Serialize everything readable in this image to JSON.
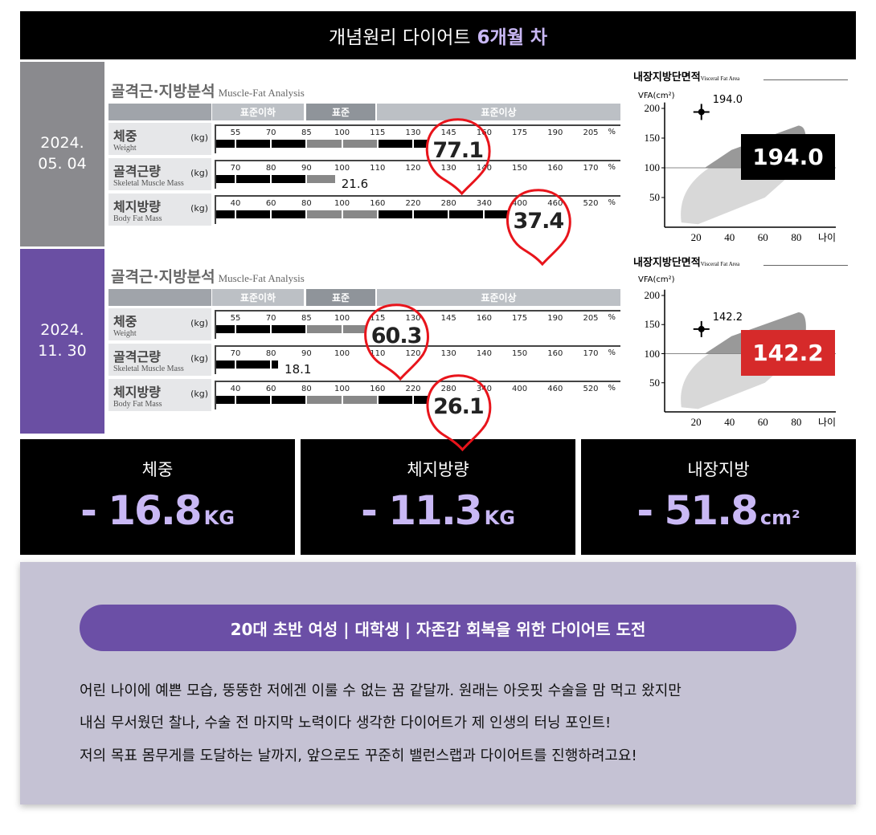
{
  "header": {
    "title_main": "개념원리 다이어트",
    "title_highlight": "6개월 차"
  },
  "records": [
    {
      "date": "2024.\n05. 04",
      "date_color": "#8a8a8e",
      "analysis": {
        "title": "골격근·지방분석",
        "title_en": "Muscle-Fat Analysis",
        "bands": [
          "표준이하",
          "표준",
          "표준이상"
        ],
        "rows": [
          {
            "name": "체중",
            "sub": "Weight",
            "unit": "(kg)",
            "ticks": [
              "55",
              "70",
              "85",
              "100",
              "115",
              "130",
              "145",
              "160",
              "175",
              "190",
              "205"
            ],
            "pct_label": "%",
            "bar_percent": 136,
            "value": "77.1",
            "callout": true
          },
          {
            "name": "골격근량",
            "sub": "Skeletal Muscle Mass",
            "unit": "(kg)",
            "ticks": [
              "70",
              "80",
              "90",
              "100",
              "110",
              "120",
              "130",
              "140",
              "150",
              "160",
              "170"
            ],
            "pct_label": "%",
            "bar_percent": 98,
            "value": "21.6",
            "callout": false
          },
          {
            "name": "체지방량",
            "sub": "Body Fat Mass",
            "unit": "(kg)",
            "ticks": [
              "40",
              "60",
              "80",
              "100",
              "160",
              "220",
              "280",
              "340",
              "400",
              "460",
              "520"
            ],
            "pct_label": "%",
            "bar_percent": 380,
            "value": "37.4",
            "callout": true
          }
        ]
      },
      "vfa": {
        "title": "내장지방단면적",
        "title_en": "Visceral Fat Area",
        "ylabel": "VFA(cm²)",
        "xlabel": "나이",
        "yticks": [
          "200",
          "150",
          "100",
          "50"
        ],
        "xticks": [
          "20",
          "40",
          "60",
          "80"
        ],
        "age": 22,
        "value": 194.0,
        "value_label": "194.0",
        "box_label": "194.0",
        "box_color": "#000000"
      }
    },
    {
      "date": "2024.\n11. 30",
      "date_color": "#6a4fa3",
      "analysis": {
        "title": "골격근·지방분석",
        "title_en": "Muscle-Fat Analysis",
        "bands": [
          "표준이하",
          "표준",
          "표준이상"
        ],
        "rows": [
          {
            "name": "체중",
            "sub": "Weight",
            "unit": "(kg)",
            "ticks": [
              "55",
              "70",
              "85",
              "100",
              "115",
              "130",
              "145",
              "160",
              "175",
              "190",
              "205"
            ],
            "pct_label": "%",
            "bar_percent": 110,
            "value": "60.3",
            "callout": true
          },
          {
            "name": "골격근량",
            "sub": "Skeletal Muscle Mass",
            "unit": "(kg)",
            "ticks": [
              "70",
              "80",
              "90",
              "100",
              "110",
              "120",
              "130",
              "140",
              "150",
              "160",
              "170"
            ],
            "pct_label": "%",
            "bar_percent": 82,
            "value": "18.1",
            "callout": false
          },
          {
            "name": "체지방량",
            "sub": "Body Fat Mass",
            "unit": "(kg)",
            "ticks": [
              "40",
              "60",
              "80",
              "100",
              "160",
              "220",
              "280",
              "340",
              "400",
              "460",
              "520"
            ],
            "pct_label": "%",
            "bar_percent": 245,
            "value": "26.1",
            "callout": true
          }
        ]
      },
      "vfa": {
        "title": "내장지방단면적",
        "title_en": "Visceral Fat Area",
        "ylabel": "VFA(cm²)",
        "xlabel": "나이",
        "yticks": [
          "200",
          "150",
          "100",
          "50"
        ],
        "xticks": [
          "20",
          "40",
          "60",
          "80"
        ],
        "age": 22,
        "value": 142.2,
        "value_label": "142.2",
        "box_label": "142.2",
        "box_color": "#d62a2a"
      }
    }
  ],
  "stats": [
    {
      "label": "체중",
      "value": "- 16.8",
      "unit": "KG"
    },
    {
      "label": "체지방량",
      "value": "- 11.3",
      "unit": "KG"
    },
    {
      "label": "내장지방",
      "value": "- 51.8",
      "unit": "cm²"
    }
  ],
  "story": {
    "tagline": "20대 초반 여성 | 대학생 | 자존감 회복을 위한 다이어트 도전",
    "lines": [
      "어린 나이에 예쁜 모습, 뚱뚱한 저에겐 이룰 수 없는 꿈 같달까. 원래는 아웃핏 수술을 맘 먹고 왔지만",
      "내심 무서웠던 찰나, 수술 전 마지막 노력이다 생각한 다이어트가 제 인생의 터닝 포인트!",
      "저의 목표 몸무게를 도달하는 날까지, 앞으로도 꾸준히 밸런스랩과 다이어트를 진행하려고요!"
    ]
  },
  "colors": {
    "accent": "#c9b8f5",
    "purple": "#6b4fa6",
    "callout": "#e8141b",
    "story_bg": "#c5c2d4"
  }
}
